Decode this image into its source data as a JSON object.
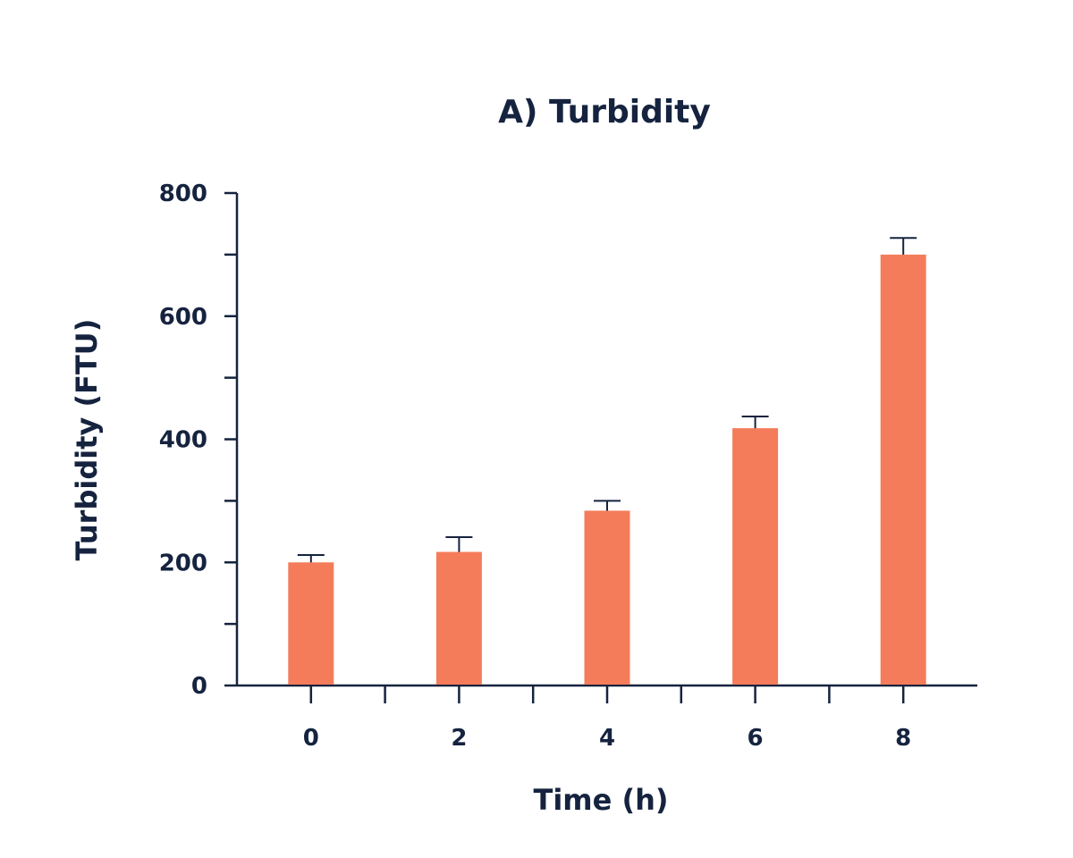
{
  "chart_data": {
    "type": "bar",
    "title": "A) Turbidity",
    "xlabel": "Time (h)",
    "ylabel": "Turbidity (FTU)",
    "categories": [
      "0",
      "2",
      "4",
      "6",
      "8"
    ],
    "values": [
      200,
      217,
      284,
      418,
      700
    ],
    "error_upper": [
      212,
      241,
      300,
      437,
      727
    ],
    "ylim": [
      0,
      800
    ],
    "y_major_ticks": [
      0,
      200,
      400,
      600,
      800
    ],
    "y_minor_step": 100,
    "grid": false,
    "legend": "none",
    "colors": {
      "bar": "#f47c5a",
      "axis": "#15233f",
      "text": "#15233f"
    }
  }
}
